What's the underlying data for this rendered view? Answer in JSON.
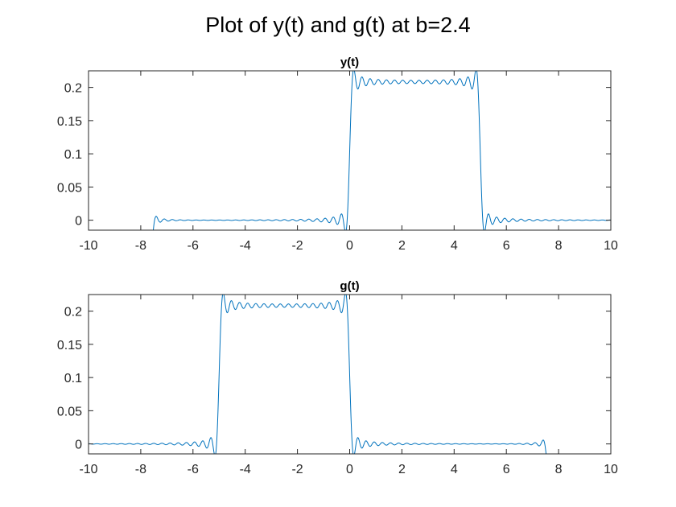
{
  "figure": {
    "title": "Plot of y(t) and g(t) at b=2.4",
    "colors": {
      "line": "#0072BD",
      "axes": "#262626",
      "background": "#ffffff"
    }
  },
  "chart_data": [
    {
      "type": "line",
      "title": "y(t)",
      "xlabel": "",
      "ylabel": "",
      "xlim": [
        -10,
        10
      ],
      "ylim": [
        -0.015,
        0.225
      ],
      "xticks": [
        -10,
        -8,
        -6,
        -4,
        -2,
        0,
        2,
        4,
        6,
        8,
        10
      ],
      "xtick_labels": [
        "-10",
        "-8",
        "-6",
        "-4",
        "-2",
        "0",
        "2",
        "4",
        "6",
        "8",
        "10"
      ],
      "yticks": [
        0,
        0.05,
        0.1,
        0.15,
        0.2
      ],
      "ytick_labels": [
        "0",
        "0.05",
        "0.1",
        "0.15",
        "0.2"
      ],
      "grid": false,
      "series": [
        {
          "pulse_start": 0,
          "pulse_end": 5,
          "plateau": 0.2083,
          "x": [
            -10,
            -8,
            -6,
            -4,
            -2,
            -1,
            -0.5,
            -0.2,
            0,
            0.2,
            0.5,
            1,
            2,
            3,
            4,
            4.5,
            4.8,
            5,
            5.2,
            5.5,
            6,
            7,
            8,
            10
          ],
          "y": [
            0,
            0,
            0,
            0,
            0,
            0.002,
            0.008,
            -0.015,
            0.104,
            0.225,
            0.202,
            0.213,
            0.21,
            0.205,
            0.213,
            0.202,
            0.225,
            0.104,
            -0.015,
            0.008,
            0.002,
            0,
            0,
            0
          ]
        }
      ]
    },
    {
      "type": "line",
      "title": "g(t)",
      "xlabel": "",
      "ylabel": "",
      "xlim": [
        -10,
        10
      ],
      "ylim": [
        -0.015,
        0.225
      ],
      "xticks": [
        -10,
        -8,
        -6,
        -4,
        -2,
        0,
        2,
        4,
        6,
        8,
        10
      ],
      "xtick_labels": [
        "-10",
        "-8",
        "-6",
        "-4",
        "-2",
        "0",
        "2",
        "4",
        "6",
        "8",
        "10"
      ],
      "yticks": [
        0,
        0.05,
        0.1,
        0.15,
        0.2
      ],
      "ytick_labels": [
        "0",
        "0.05",
        "0.1",
        "0.15",
        "0.2"
      ],
      "grid": false,
      "series": [
        {
          "pulse_start": -5,
          "pulse_end": 0,
          "plateau": 0.2083,
          "x": [
            -10,
            -8,
            -6,
            -5.5,
            -5.2,
            -5,
            -4.8,
            -4.5,
            -4,
            -3,
            -2,
            -1,
            -0.5,
            -0.2,
            0,
            0.2,
            0.5,
            1,
            2,
            4,
            6,
            8,
            10
          ],
          "y": [
            0,
            0,
            0.002,
            0.008,
            -0.015,
            0.104,
            0.225,
            0.202,
            0.213,
            0.205,
            0.21,
            0.213,
            0.202,
            0.225,
            0.104,
            -0.015,
            0.008,
            0.002,
            0,
            0,
            0,
            0,
            0
          ]
        }
      ]
    }
  ]
}
